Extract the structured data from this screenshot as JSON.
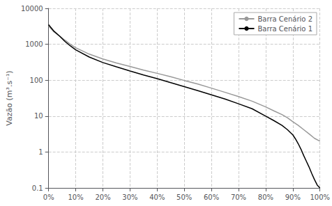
{
  "chart_data": {
    "type": "line",
    "ylabel": "Vazão (m³.s⁻¹)",
    "xlim": [
      0,
      1
    ],
    "ylim": [
      0.1,
      10000
    ],
    "log": "y",
    "xticks": [
      {
        "value": 0.0,
        "label": "0%"
      },
      {
        "value": 0.1,
        "label": "10%"
      },
      {
        "value": 0.2,
        "label": "20%"
      },
      {
        "value": 0.3,
        "label": "30%"
      },
      {
        "value": 0.4,
        "label": "40%"
      },
      {
        "value": 0.5,
        "label": "50%"
      },
      {
        "value": 0.6,
        "label": "60%"
      },
      {
        "value": 0.7,
        "label": "70%"
      },
      {
        "value": 0.8,
        "label": "80%"
      },
      {
        "value": 0.9,
        "label": "90%"
      },
      {
        "value": 1.0,
        "label": "100%"
      }
    ],
    "yticks": [
      0.1,
      1,
      10,
      100,
      1000,
      10000
    ],
    "grid": true,
    "legend": "upper right",
    "series": [
      {
        "name": "Barra Cenário 2",
        "color": "#999999",
        "x": [
          0.0,
          0.02,
          0.04,
          0.06,
          0.08,
          0.1,
          0.15,
          0.2,
          0.25,
          0.3,
          0.35,
          0.4,
          0.45,
          0.5,
          0.55,
          0.6,
          0.65,
          0.7,
          0.75,
          0.8,
          0.83,
          0.86,
          0.88,
          0.9,
          0.92,
          0.94,
          0.96,
          0.98,
          1.0
        ],
        "values": [
          3200,
          2200,
          1700,
          1300,
          1000,
          800,
          530,
          390,
          300,
          240,
          190,
          155,
          125,
          98,
          78,
          60,
          46,
          35,
          26,
          18,
          14,
          11,
          9,
          7,
          5.5,
          4.2,
          3.2,
          2.4,
          2.0
        ]
      },
      {
        "name": "Barra Cenário 1",
        "color": "#000000",
        "x": [
          0.0,
          0.02,
          0.04,
          0.06,
          0.08,
          0.1,
          0.15,
          0.2,
          0.25,
          0.3,
          0.35,
          0.4,
          0.45,
          0.5,
          0.55,
          0.6,
          0.65,
          0.7,
          0.75,
          0.8,
          0.83,
          0.86,
          0.88,
          0.9,
          0.91,
          0.92,
          0.93,
          0.94,
          0.95,
          0.96,
          0.97,
          0.98,
          0.99,
          1.0
        ],
        "values": [
          3500,
          2300,
          1700,
          1200,
          900,
          700,
          440,
          310,
          235,
          180,
          140,
          110,
          85,
          66,
          51,
          39,
          30,
          22,
          16,
          10,
          7.5,
          5.5,
          4.2,
          3.0,
          2.3,
          1.7,
          1.2,
          0.8,
          0.55,
          0.38,
          0.25,
          0.17,
          0.12,
          0.1
        ]
      }
    ]
  }
}
